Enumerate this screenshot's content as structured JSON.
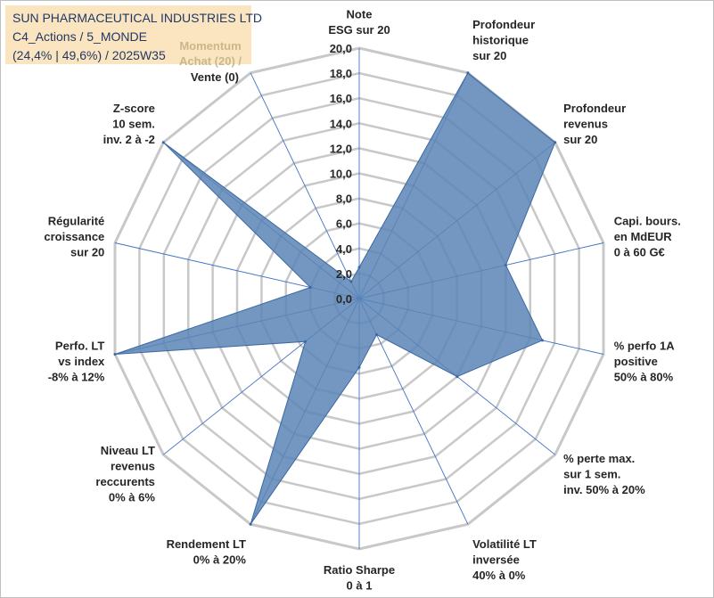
{
  "header": {
    "company": "SUN PHARMACEUTICAL INDUSTRIES LTD",
    "portfolio": "C4_Actions / 5_MONDE",
    "stats": "(24,4% | 49,6%) / 2025W35"
  },
  "momentum_text": [
    "Momentum",
    "Achat (20) /"
  ],
  "colors": {
    "fill": "#5b85b5",
    "line": "#3a68a3",
    "grid": "#c8c8c8",
    "spoke": "#4472c4",
    "title_bg": "#fbe5c0"
  },
  "chart_data": {
    "type": "radar",
    "title": "",
    "rmax": 20,
    "ticks": [
      "0,0",
      "2,0",
      "4,0",
      "6,0",
      "8,0",
      "10,0",
      "12,0",
      "14,0",
      "16,0",
      "18,0",
      "20,0"
    ],
    "axes": [
      {
        "label": [
          "Note",
          "ESG sur 20"
        ],
        "value": 2.5
      },
      {
        "label": [
          "Profondeur",
          "historique",
          "sur 20"
        ],
        "value": 20
      },
      {
        "label": [
          "Profondeur",
          "revenus",
          "sur 20"
        ],
        "value": 20
      },
      {
        "label": [
          "Capi. bours.",
          "en MdEUR",
          "0 à 60 G€"
        ],
        "value": 12
      },
      {
        "label": [
          "% perfo 1A",
          "positive",
          "50% à 80%"
        ],
        "value": 15
      },
      {
        "label": [
          "% perte max.",
          "sur 1 sem.",
          "inv. 50% à 20%"
        ],
        "value": 10
      },
      {
        "label": [
          "Volatilité LT",
          "inversée",
          "40% à 0%"
        ],
        "value": 3.2
      },
      {
        "label": [
          "Ratio Sharpe",
          "0 à 1"
        ],
        "value": 5.5
      },
      {
        "label": [
          "Rendement LT",
          "0% à 20%"
        ],
        "value": 20
      },
      {
        "label": [
          "Niveau LT",
          "revenus",
          "reccurents",
          "0% à 6%"
        ],
        "value": 5.5
      },
      {
        "label": [
          "Perfo. LT",
          "vs index",
          "-8% à 12%"
        ],
        "value": 20
      },
      {
        "label": [
          "Régularité",
          "croissance",
          "sur 20"
        ],
        "value": 4
      },
      {
        "label": [
          "Z-score",
          "10 sem.",
          "inv. 2 à -2"
        ],
        "value": 20
      },
      {
        "label": [
          "Vente (0)"
        ],
        "value": 1.5
      }
    ]
  }
}
